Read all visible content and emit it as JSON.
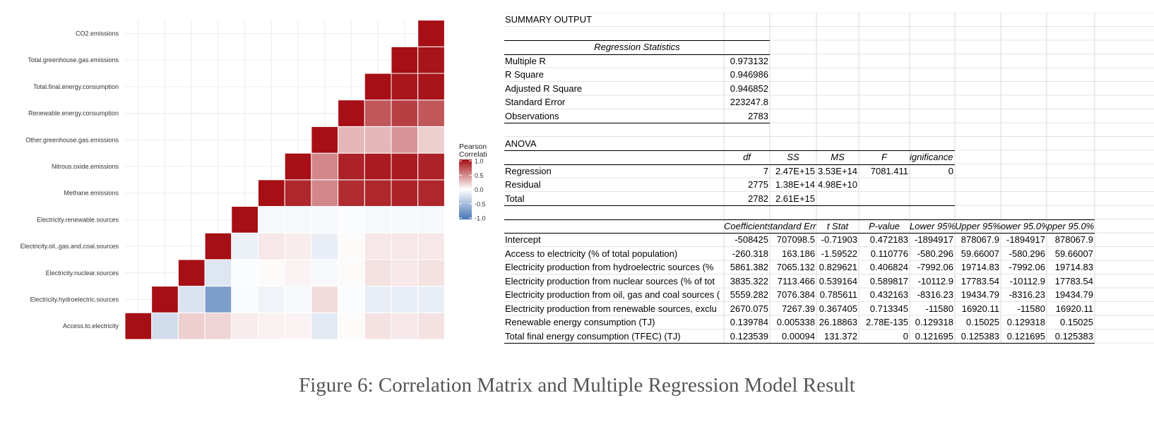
{
  "chart_data": {
    "type": "heatmap",
    "variables": [
      "Access.to.electricity",
      "Electricity.hydroelectric.sources",
      "Electricity.nuclear.sources",
      "Electricity.oil..gas.and.coal.sources",
      "Electricity.renewable.sources",
      "Methane.emissions",
      "Nitrous.oxide.emissions",
      "Other.greenhouse.gas.emissions",
      "Renewable.energy.consumption",
      "Total.final.energy.consumption",
      "Total.greenhouse.gas.emissions",
      "CO2.emissions"
    ],
    "lower_triangle_values": [
      [
        1.0
      ],
      [
        -0.25,
        1.0
      ],
      [
        0.2,
        -0.2,
        1.0
      ],
      [
        0.18,
        -0.7,
        -0.18,
        1.0
      ],
      [
        0.08,
        -0.03,
        -0.02,
        -0.1,
        1.0
      ],
      [
        0.06,
        -0.08,
        0.02,
        0.1,
        -0.05,
        1.0
      ],
      [
        0.05,
        -0.05,
        0.05,
        0.08,
        -0.05,
        0.9,
        1.0
      ],
      [
        -0.15,
        0.15,
        -0.05,
        -0.12,
        -0.05,
        0.5,
        0.5,
        1.0
      ],
      [
        0.02,
        -0.02,
        0.02,
        0.02,
        -0.02,
        0.88,
        0.92,
        0.3,
        1.0
      ],
      [
        0.12,
        -0.12,
        0.12,
        0.1,
        -0.05,
        0.9,
        0.95,
        0.3,
        0.7,
        1.0
      ],
      [
        0.1,
        -0.12,
        0.1,
        0.1,
        -0.05,
        0.92,
        0.95,
        0.45,
        0.8,
        0.97,
        1.0
      ],
      [
        0.12,
        -0.12,
        0.12,
        0.1,
        -0.05,
        0.9,
        0.92,
        0.2,
        0.7,
        0.98,
        0.98,
        1.0
      ]
    ],
    "legend_title": "Pearson\nCorrelation",
    "legend_ticks": [
      "1.0",
      "0.5",
      "0.0",
      "-0.5",
      "-1.0"
    ],
    "scale_range": [
      -1,
      1
    ],
    "colors": {
      "neg": "#4575b4",
      "mid": "#ffffff",
      "pos": "#a50f15"
    },
    "legend_position": "right",
    "grid": true
  },
  "sheet": {
    "title": "SUMMARY OUTPUT",
    "regression_statistics_header": "Regression Statistics",
    "regression_statistics": [
      {
        "label": "Multiple R",
        "value": "0.973132"
      },
      {
        "label": "R Square",
        "value": "0.946986"
      },
      {
        "label": "Adjusted R Square",
        "value": "0.946852"
      },
      {
        "label": "Standard Error",
        "value": "223247.8"
      },
      {
        "label": "Observations",
        "value": "2783"
      }
    ],
    "anova_title": "ANOVA",
    "anova_headers": [
      "df",
      "SS",
      "MS",
      "F",
      "ignificance F"
    ],
    "anova_rows": [
      {
        "label": "Regression",
        "values": [
          "7",
          "2.47E+15",
          "3.53E+14",
          "7081.411",
          "0"
        ]
      },
      {
        "label": "Residual",
        "values": [
          "2775",
          "1.38E+14",
          "4.98E+10",
          "",
          ""
        ]
      },
      {
        "label": "Total",
        "values": [
          "2782",
          "2.61E+15",
          "",
          "",
          ""
        ]
      }
    ],
    "coef_headers": [
      "Coefficients",
      "tandard Err",
      "t Stat",
      "P-value",
      "Lower 95%",
      "Upper 95%",
      "ower 95.0%",
      "pper 95.0%"
    ],
    "coef_rows": [
      {
        "label": "Intercept",
        "values": [
          "-508425",
          "707098.5",
          "-0.71903",
          "0.472183",
          "-1894917",
          "878067.9",
          "-1894917",
          "878067.9"
        ]
      },
      {
        "label": "Access to electricity (% of total population)",
        "values": [
          "-260.318",
          "163.186",
          "-1.59522",
          "0.110776",
          "-580.296",
          "59.66007",
          "-580.296",
          "59.66007"
        ]
      },
      {
        "label": "Electricity production from hydroelectric sources (%",
        "values": [
          "5861.382",
          "7065.132",
          "0.829621",
          "0.406824",
          "-7992.06",
          "19714.83",
          "-7992.06",
          "19714.83"
        ]
      },
      {
        "label": "Electricity production from nuclear sources (% of tot",
        "values": [
          "3835.322",
          "7113.466",
          "0.539164",
          "0.589817",
          "-10112.9",
          "17783.54",
          "-10112.9",
          "17783.54"
        ]
      },
      {
        "label": "Electricity production from oil, gas and coal sources (",
        "values": [
          "5559.282",
          "7076.384",
          "0.785611",
          "0.432163",
          "-8316.23",
          "19434.79",
          "-8316.23",
          "19434.79"
        ]
      },
      {
        "label": "Electricity production from renewable sources, exclu",
        "values": [
          "2670.075",
          "7267.39",
          "0.367405",
          "0.713345",
          "-11580",
          "16920.11",
          "-11580",
          "16920.11"
        ]
      },
      {
        "label": "Renewable energy consumption (TJ)",
        "values": [
          "0.139784",
          "0.005338",
          "26.18863",
          "2.78E-135",
          "0.129318",
          "0.15025",
          "0.129318",
          "0.15025"
        ]
      },
      {
        "label": "Total final energy consumption (TFEC) (TJ)",
        "values": [
          "0.123539",
          "0.00094",
          "131.372",
          "0",
          "0.121695",
          "0.125383",
          "0.121695",
          "0.125383"
        ]
      }
    ]
  },
  "caption": "Figure 6: Correlation Matrix and Multiple Regression Model Result"
}
